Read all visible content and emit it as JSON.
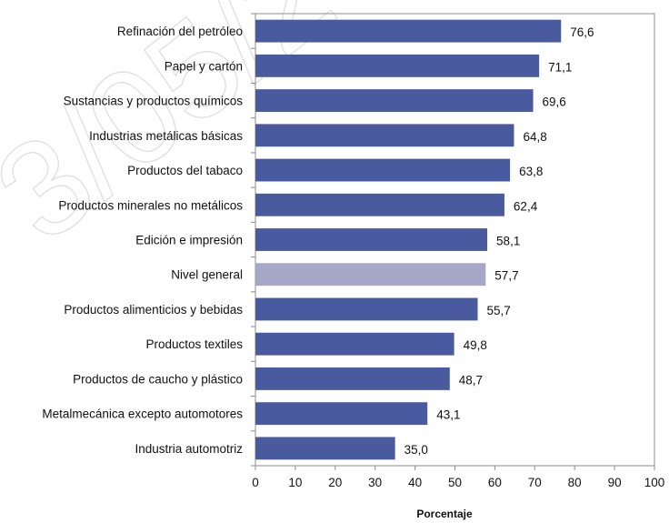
{
  "watermark": "3/05/2",
  "chart_data": {
    "type": "bar",
    "orientation": "horizontal",
    "categories": [
      "Refinación del petróleo",
      "Papel y cartón",
      "Sustancias y productos químicos",
      "Industrias metálicas básicas",
      "Productos del tabaco",
      "Productos minerales no metálicos",
      "Edición e impresión",
      "Nivel general",
      "Productos alimenticios y bebidas",
      "Productos textiles",
      "Productos de caucho y plástico",
      "Metalmecánica excepto automotores",
      "Industria automotriz"
    ],
    "values": [
      76.6,
      71.1,
      69.6,
      64.8,
      63.8,
      62.4,
      58.1,
      57.7,
      55.7,
      49.8,
      48.7,
      43.1,
      35.0
    ],
    "value_labels": [
      "76,6",
      "71,1",
      "69,6",
      "64,8",
      "63,8",
      "62,4",
      "58,1",
      "57,7",
      "55,7",
      "49,8",
      "48,7",
      "43,1",
      "35,0"
    ],
    "highlight_category": "Nivel general",
    "xlabel": "Porcentaje",
    "ylabel": "",
    "xlim": [
      0,
      100
    ],
    "xticks": [
      0,
      10,
      20,
      30,
      40,
      50,
      60,
      70,
      80,
      90,
      100
    ],
    "grid": false,
    "legend": "none",
    "colors": {
      "bar": "#4a5a9f",
      "highlight": "#a6a6c6",
      "frame": "#8c8c8c"
    }
  }
}
